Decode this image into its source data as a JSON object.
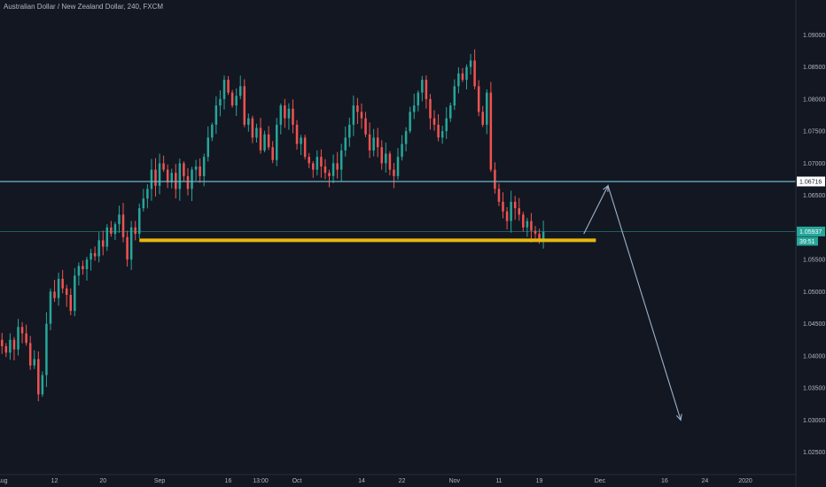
{
  "chart_data": {
    "type": "candlestick",
    "title": "Australian Dollar / New Zealand Dollar, 240, FXCM",
    "ylim": [
      1.0215,
      1.0935
    ],
    "y_ticks": [
      "1.09000",
      "1.08500",
      "1.08000",
      "1.07500",
      "1.07000",
      "1.06500",
      "1.05500",
      "1.05000",
      "1.04500",
      "1.04000",
      "1.03500",
      "1.03000",
      "1.02500"
    ],
    "x_ticks": [
      {
        "label": "Aug",
        "i": 0
      },
      {
        "label": "12",
        "i": 13
      },
      {
        "label": "20",
        "i": 25
      },
      {
        "label": "Sep",
        "i": 39
      },
      {
        "label": "16",
        "i": 56
      },
      {
        "label": "13:00",
        "i": 64
      },
      {
        "label": "Oct",
        "i": 73
      },
      {
        "label": "14",
        "i": 89
      },
      {
        "label": "22",
        "i": 99
      },
      {
        "label": "Nov",
        "i": 112
      },
      {
        "label": "11",
        "i": 123
      },
      {
        "label": "19",
        "i": 133
      },
      {
        "label": "Dec",
        "i": 148
      },
      {
        "label": "16",
        "i": 164
      },
      {
        "label": "24",
        "i": 174
      },
      {
        "label": "2020",
        "i": 184
      }
    ],
    "n_slots": 197,
    "series_close": [
      1.0415,
      1.0405,
      1.0425,
      1.041,
      1.0445,
      1.0435,
      1.042,
      1.0385,
      1.0395,
      1.034,
      1.037,
      1.045,
      1.05,
      1.049,
      1.052,
      1.0505,
      1.0495,
      1.047,
      1.0525,
      1.054,
      1.0535,
      1.055,
      1.056,
      1.0555,
      1.058,
      1.057,
      1.06,
      1.059,
      1.0605,
      1.062,
      1.0585,
      1.055,
      1.06,
      1.059,
      1.063,
      1.0645,
      1.066,
      1.069,
      1.0665,
      1.07,
      1.069,
      1.067,
      1.0685,
      1.066,
      1.07,
      1.068,
      1.066,
      1.069,
      1.0695,
      1.068,
      1.071,
      1.074,
      1.076,
      1.079,
      1.08,
      1.083,
      1.081,
      1.079,
      1.0805,
      1.082,
      1.076,
      1.077,
      1.074,
      1.0755,
      1.072,
      1.0745,
      1.0725,
      1.0705,
      1.076,
      1.079,
      1.077,
      1.0785,
      1.076,
      1.073,
      1.074,
      1.071,
      1.07,
      1.069,
      1.071,
      1.0695,
      1.0685,
      1.068,
      1.07,
      1.069,
      1.072,
      1.074,
      1.076,
      1.079,
      1.078,
      1.077,
      1.0745,
      1.072,
      1.074,
      1.0725,
      1.07,
      1.0715,
      1.069,
      1.068,
      1.071,
      1.073,
      1.075,
      1.078,
      1.079,
      1.081,
      1.083,
      1.08,
      1.077,
      1.076,
      1.074,
      1.075,
      1.077,
      1.079,
      1.082,
      1.084,
      1.083,
      1.085,
      1.086,
      1.082,
      1.078,
      1.076,
      1.081,
      1.069,
      1.066,
      1.064,
      1.0625,
      1.061,
      1.064,
      1.063,
      1.062,
      1.06,
      1.061,
      1.0595,
      1.059,
      1.058,
      1.0593
    ],
    "resistance_level": 1.06716,
    "current_price": 1.05937,
    "support_level": 1.058,
    "support_range_i": [
      34,
      147
    ],
    "projection": [
      {
        "i": 144,
        "price": 1.059
      },
      {
        "i": 150,
        "price": 1.0665
      },
      {
        "i": 168,
        "price": 1.03
      }
    ],
    "price_badges": [
      {
        "label": "1.06716",
        "type": "resistance"
      },
      {
        "label": "1.05937",
        "type": "current"
      },
      {
        "label": "39:51",
        "type": "countdown"
      }
    ],
    "colors": {
      "background": "#131722",
      "up": "#26a69a",
      "down": "#ef5350",
      "level_line": "#6fb9c9",
      "support_line": "#e6b80e",
      "projection": "#9eb2c9",
      "axis_text": "#b2b5be",
      "current_badge": "#26a69a",
      "resistance_badge_bg": "#ffffff",
      "resistance_badge_text": "#131722"
    }
  }
}
